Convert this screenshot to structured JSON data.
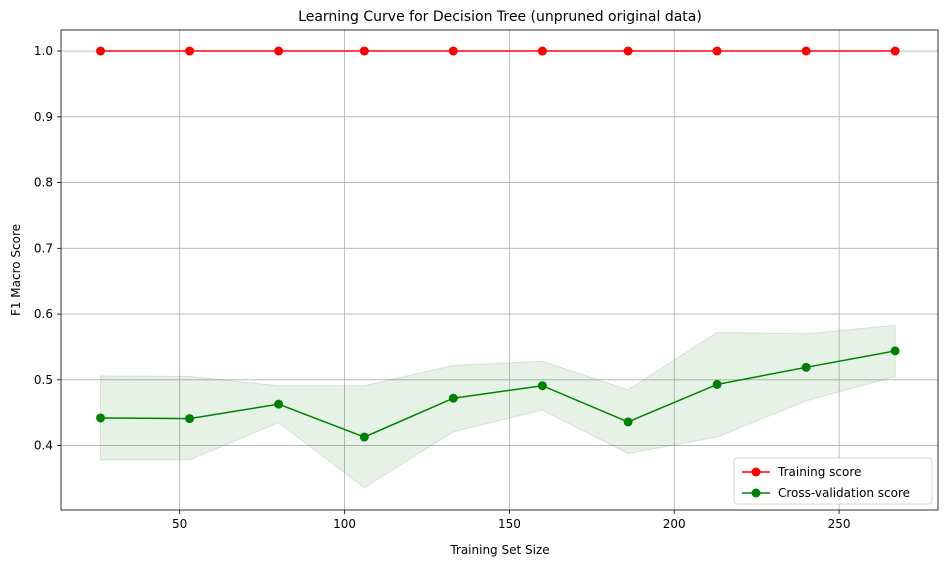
{
  "chart_data": {
    "type": "line",
    "title": "Learning Curve for Decision Tree (unpruned original data)",
    "xlabel": "Training Set Size",
    "ylabel": "F1 Macro Score",
    "xlim": [
      14,
      280
    ],
    "ylim": [
      0.302,
      1.032
    ],
    "xticks": [
      50,
      100,
      150,
      200,
      250
    ],
    "yticks": [
      0.4,
      0.5,
      0.6,
      0.7,
      0.8,
      0.9,
      1.0
    ],
    "grid": true,
    "legend_position": "bottom-right",
    "x": [
      26,
      53,
      80,
      106,
      133,
      160,
      186,
      213,
      240,
      267
    ],
    "series": [
      {
        "name": "Training score",
        "color": "#ff0000",
        "marker": "circle",
        "values": [
          1.0,
          1.0,
          1.0,
          1.0,
          1.0,
          1.0,
          1.0,
          1.0,
          1.0,
          1.0
        ],
        "lower": [
          1.0,
          1.0,
          1.0,
          1.0,
          1.0,
          1.0,
          1.0,
          1.0,
          1.0,
          1.0
        ],
        "upper": [
          1.0,
          1.0,
          1.0,
          1.0,
          1.0,
          1.0,
          1.0,
          1.0,
          1.0,
          1.0
        ]
      },
      {
        "name": "Cross-validation score",
        "color": "#008000",
        "band_color": "#008000",
        "band_opacity": 0.1,
        "marker": "circle",
        "values": [
          0.442,
          0.441,
          0.463,
          0.413,
          0.472,
          0.491,
          0.436,
          0.493,
          0.519,
          0.544
        ],
        "lower": [
          0.378,
          0.378,
          0.435,
          0.336,
          0.421,
          0.454,
          0.388,
          0.413,
          0.468,
          0.505
        ],
        "upper": [
          0.506,
          0.505,
          0.491,
          0.491,
          0.522,
          0.528,
          0.485,
          0.572,
          0.57,
          0.583
        ]
      }
    ]
  }
}
